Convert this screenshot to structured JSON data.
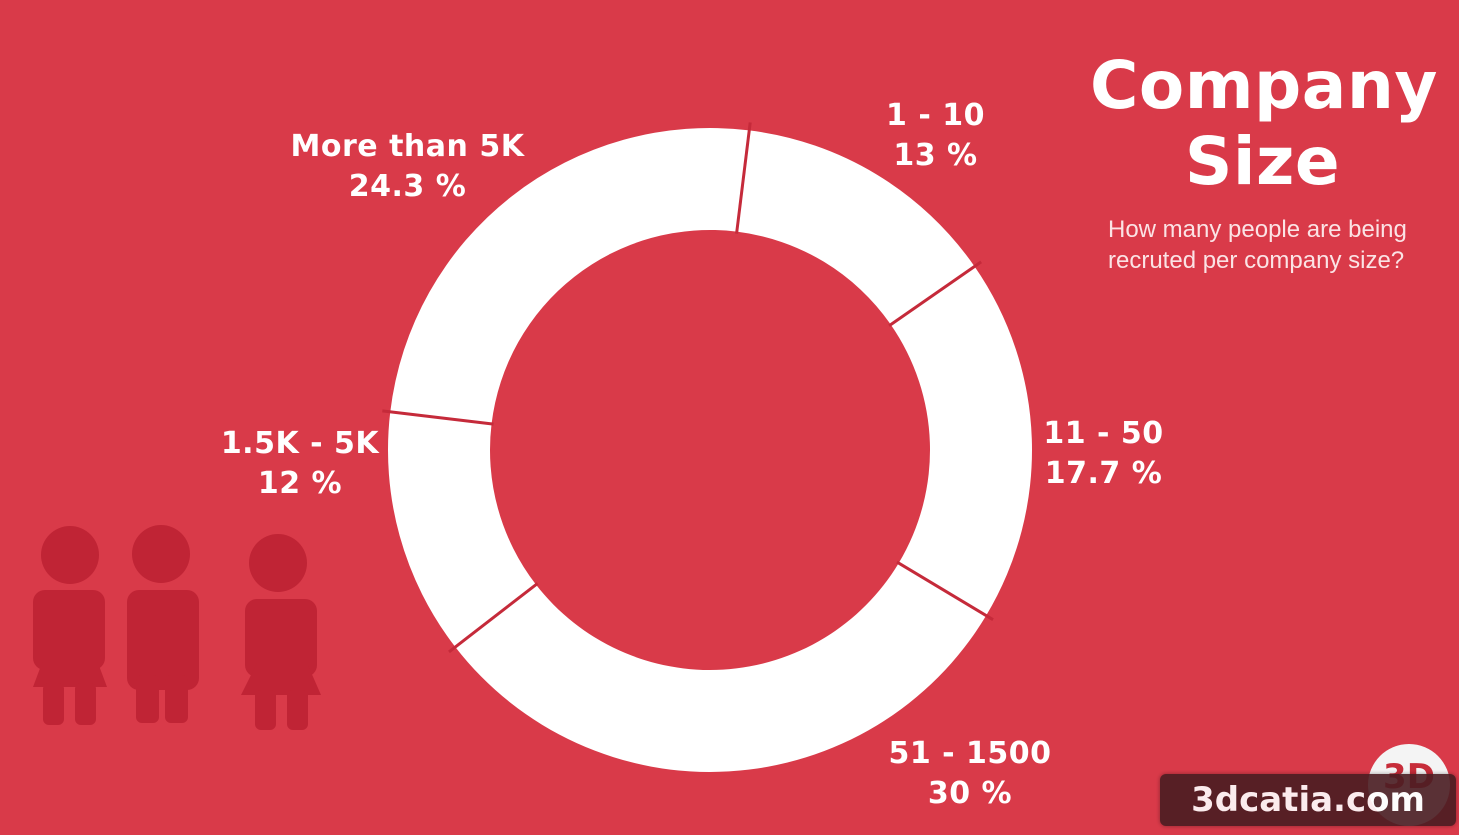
{
  "title": "Company Size",
  "title_lines": [
    "Company",
    "Size"
  ],
  "subtitle_lines": [
    "How many people are being",
    "recruted per company size?"
  ],
  "chart_data": {
    "type": "pie",
    "title": "Company Size",
    "subtitle": "How many people are being recruted per company size?",
    "donut": true,
    "categories": [
      "1 - 10",
      "11 - 50",
      "51 - 1500",
      "1.5K - 5K",
      "More than 5K"
    ],
    "values": [
      13,
      17.7,
      30,
      12,
      24.3
    ],
    "value_labels": [
      "13 %",
      "17.7 %",
      "30 %",
      "12 %",
      "24.3 %"
    ],
    "unit": "%",
    "colors": {
      "slice": "#ffffff",
      "background": "#d93a49",
      "separator": "#c52a3a"
    }
  },
  "watermark": {
    "text": "3dcatia.com",
    "logo": "3D"
  },
  "decor": {
    "icons": [
      "female-person-icon",
      "male-person-icon",
      "female-person-icon"
    ],
    "color": "#c02435"
  }
}
